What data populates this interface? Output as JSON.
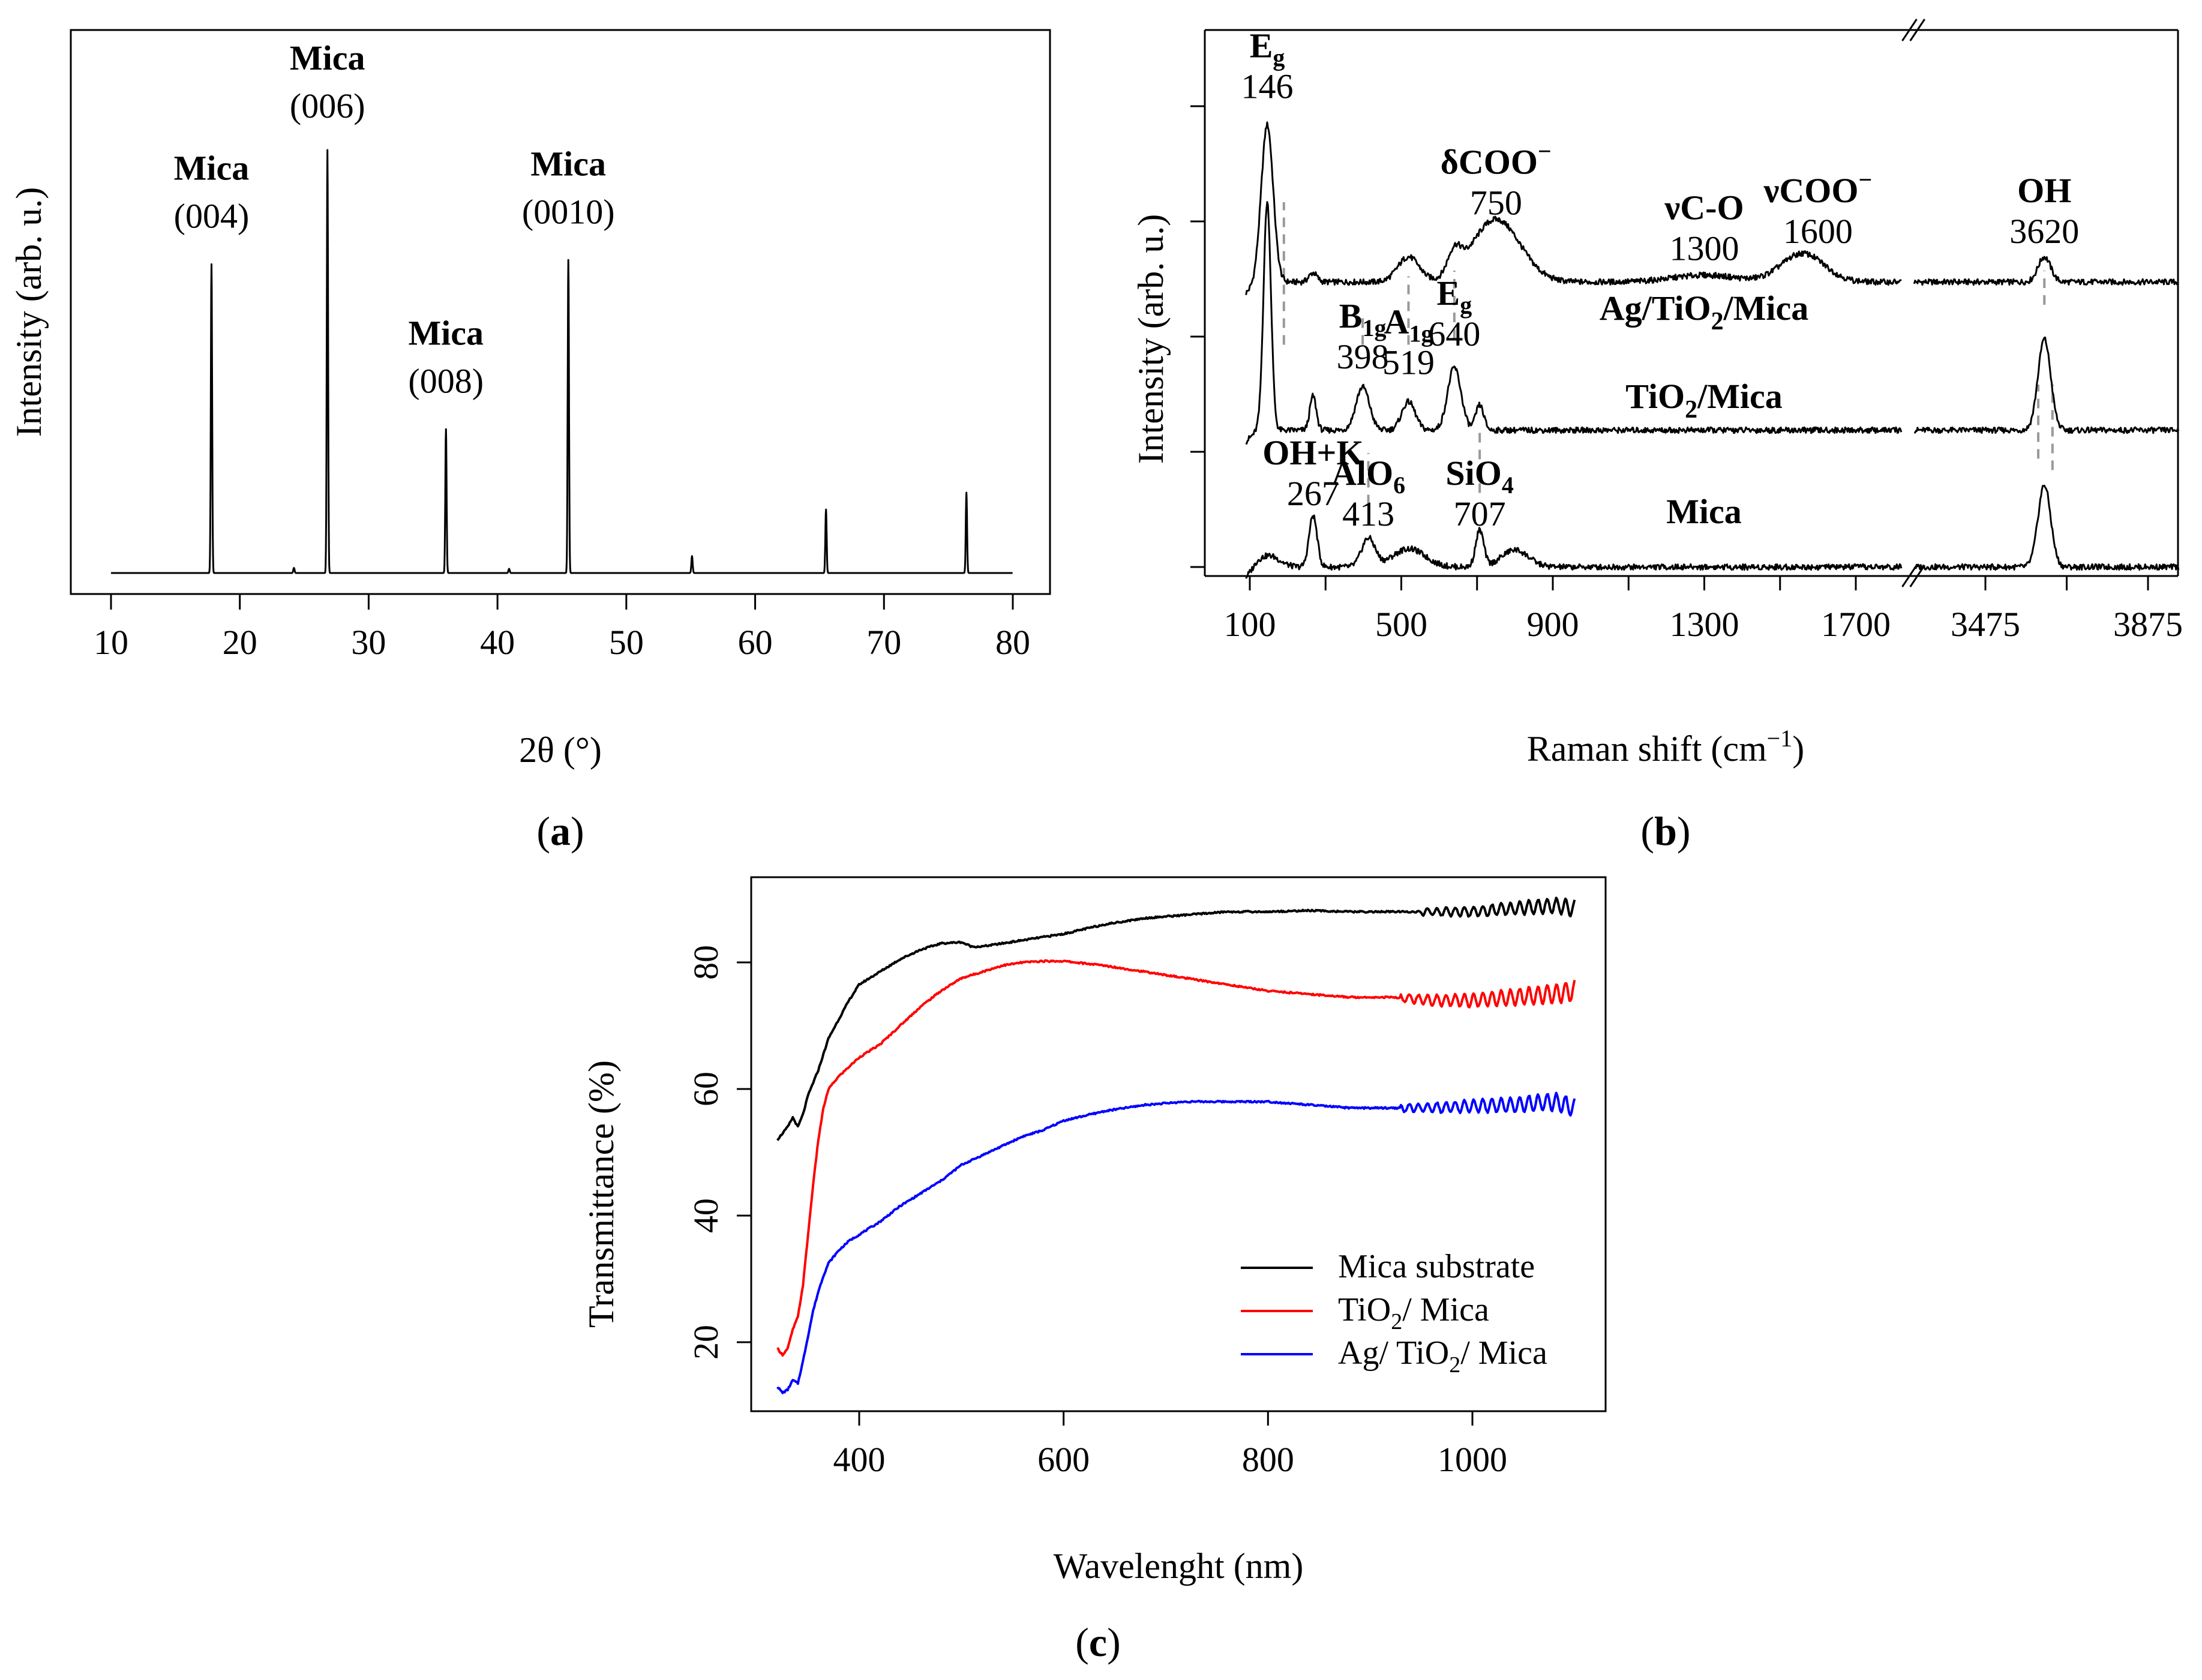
{
  "chart_data": [
    {
      "id": "a",
      "type": "line",
      "panel_label": "a",
      "xlabel": "2θ (°)",
      "ylabel": "Intensity (arb. u.)",
      "xlim": [
        10,
        80
      ],
      "ylim": [
        0,
        1.0
      ],
      "x_ticks": [
        10,
        20,
        30,
        40,
        50,
        60,
        70,
        80
      ],
      "series": [
        {
          "name": "Mica XRD",
          "color": "#000000",
          "baseline": 0.0,
          "peaks": [
            {
              "pos": 17.8,
              "height": 0.73
            },
            {
              "pos": 26.8,
              "height": 1.0
            },
            {
              "pos": 36.0,
              "height": 0.34
            },
            {
              "pos": 45.5,
              "height": 0.74
            },
            {
              "pos": 55.1,
              "height": 0.04
            },
            {
              "pos": 65.5,
              "height": 0.15
            },
            {
              "pos": 76.4,
              "height": 0.19
            },
            {
              "pos": 24.2,
              "height": 0.012
            },
            {
              "pos": 40.9,
              "height": 0.01
            }
          ]
        }
      ],
      "annotations": [
        {
          "name": "Mica",
          "hkl": "(004)",
          "x": 17.8,
          "label_y": 0.93
        },
        {
          "name": "Mica",
          "hkl": "(006)",
          "x": 26.8,
          "label_y": 1.19
        },
        {
          "name": "Mica",
          "hkl": "(008)",
          "x": 36.0,
          "label_y": 0.54
        },
        {
          "name": "Mica",
          "hkl": "(0010)",
          "x": 45.5,
          "label_y": 0.94
        }
      ]
    },
    {
      "id": "b",
      "type": "line",
      "panel_label": "b",
      "xlabel": "Raman shift (cm",
      "xlabel_sup": "−1",
      "xlabel_end": ")",
      "ylabel": "Intensity (arb. u.)",
      "x_segments": [
        [
          50,
          1850
        ],
        [
          3300,
          3950
        ]
      ],
      "x_ticks_labeled": [
        100,
        500,
        900,
        1300,
        1700,
        3475,
        3875
      ],
      "ylim": [
        0,
        5
      ],
      "series": [
        {
          "name": "Ag/TiO2/Mica",
          "label_main": "Ag/TiO",
          "label_sub": "2",
          "label_end": "/Mica",
          "offset": 2.5,
          "peaks": [
            {
              "pos": 146,
              "height": 1.38,
              "width": 22
            },
            {
              "pos": 267,
              "height": 0.08,
              "width": 15
            },
            {
              "pos": 519,
              "height": 0.22,
              "width": 40
            },
            {
              "pos": 640,
              "height": 0.2,
              "width": 25
            },
            {
              "pos": 750,
              "height": 0.55,
              "width": 90
            },
            {
              "pos": 1300,
              "height": 0.06,
              "width": 120
            },
            {
              "pos": 1560,
              "height": 0.25,
              "width": 80
            },
            {
              "pos": 3620,
              "height": 0.22,
              "width": 22
            }
          ]
        },
        {
          "name": "TiO2/Mica",
          "label_main": "TiO",
          "label_sub": "2",
          "label_end": "/Mica",
          "offset": 1.2,
          "peaks": [
            {
              "pos": 146,
              "height": 2.0,
              "width": 14
            },
            {
              "pos": 267,
              "height": 0.3,
              "width": 12
            },
            {
              "pos": 398,
              "height": 0.38,
              "width": 25
            },
            {
              "pos": 519,
              "height": 0.25,
              "width": 25
            },
            {
              "pos": 640,
              "height": 0.55,
              "width": 25
            },
            {
              "pos": 707,
              "height": 0.22,
              "width": 15
            },
            {
              "pos": 3620,
              "height": 0.8,
              "width": 22
            }
          ]
        },
        {
          "name": "Mica",
          "label_main": "Mica",
          "label_sub": "",
          "label_end": "",
          "offset": 0.0,
          "peaks": [
            {
              "pos": 150,
              "height": 0.1,
              "width": 40
            },
            {
              "pos": 267,
              "height": 0.45,
              "width": 15
            },
            {
              "pos": 413,
              "height": 0.25,
              "width": 25
            },
            {
              "pos": 520,
              "height": 0.16,
              "width": 60
            },
            {
              "pos": 707,
              "height": 0.32,
              "width": 15
            },
            {
              "pos": 800,
              "height": 0.15,
              "width": 50
            },
            {
              "pos": 3620,
              "height": 0.72,
              "width": 22
            }
          ]
        }
      ],
      "dashed_markers": [
        {
          "x": 190,
          "y0": 1.95,
          "y1": 3.2
        },
        {
          "x": 398,
          "y0": 1.95,
          "y1": 2.2
        },
        {
          "x": 519,
          "y0": 1.95,
          "y1": 2.55
        },
        {
          "x": 640,
          "y0": 2.0,
          "y1": 2.6
        },
        {
          "x": 413,
          "y0": 0.55,
          "y1": 1.0
        },
        {
          "x": 707,
          "y0": 0.65,
          "y1": 1.2
        },
        {
          "x": 3605,
          "y0": 0.95,
          "y1": 1.6
        },
        {
          "x": 3640,
          "y0": 0.85,
          "y1": 1.6
        },
        {
          "x": 3620,
          "y0": 2.3,
          "y1": 2.6
        }
      ],
      "annotations": [
        {
          "x": 146,
          "y": 4.47,
          "lines": [
            {
              "t": "E",
              "sub": "g",
              "bold": true
            },
            {
              "t": "146"
            }
          ]
        },
        {
          "x": 750,
          "y": 3.45,
          "lines": [
            {
              "t": "δCOO",
              "sup": "−",
              "bold": true
            },
            {
              "t": "750"
            }
          ]
        },
        {
          "x": 1300,
          "y": 3.05,
          "lines": [
            {
              "t": "νC-O",
              "bold": true
            },
            {
              "t": "1300"
            }
          ]
        },
        {
          "x": 1600,
          "y": 3.2,
          "lines": [
            {
              "t": "νCOO",
              "sup": "−",
              "bold": true
            },
            {
              "t": "1600"
            }
          ]
        },
        {
          "x": 3620,
          "y": 3.2,
          "lines": [
            {
              "t": "OH",
              "bold": true
            },
            {
              "t": "3620"
            }
          ]
        },
        {
          "x": 398,
          "y": 2.1,
          "lines": [
            {
              "t": "B",
              "sub": "1g",
              "bold": true
            },
            {
              "t": "398"
            }
          ]
        },
        {
          "x": 519,
          "y": 2.05,
          "lines": [
            {
              "t": "A",
              "sub": "1g",
              "bold": true
            },
            {
              "t": "519"
            }
          ]
        },
        {
          "x": 640,
          "y": 2.3,
          "lines": [
            {
              "t": "E",
              "sub": "g",
              "bold": true
            },
            {
              "t": "640"
            }
          ]
        },
        {
          "x": 267,
          "y": 0.9,
          "lines": [
            {
              "t": "OH+K",
              "bold": true
            },
            {
              "t": "267"
            }
          ]
        },
        {
          "x": 413,
          "y": 0.72,
          "lines": [
            {
              "t": "AlO",
              "sub": "6",
              "bold": true
            },
            {
              "t": "413"
            }
          ]
        },
        {
          "x": 707,
          "y": 0.72,
          "lines": [
            {
              "t": "SiO",
              "sub": "4",
              "bold": true
            },
            {
              "t": "707"
            }
          ]
        }
      ]
    },
    {
      "id": "c",
      "type": "line",
      "panel_label": "c",
      "xlabel": "Wavelenght (nm)",
      "ylabel": "Transmittance (%)",
      "xlim": [
        300,
        1110
      ],
      "ylim": [
        9,
        92
      ],
      "x_ticks": [
        400,
        600,
        800,
        1000
      ],
      "y_ticks": [
        20,
        40,
        60,
        80
      ],
      "legend_position": "bottom-right",
      "series": [
        {
          "name": "Mica substrate",
          "legend_main": "Mica substrate",
          "legend_sub": "",
          "legend_end": "",
          "color": "#000000",
          "x": [
            320,
            330,
            335,
            340,
            345,
            350,
            360,
            370,
            380,
            390,
            400,
            410,
            420,
            440,
            460,
            480,
            500,
            510,
            520,
            540,
            560,
            580,
            600,
            640,
            680,
            720,
            760,
            800,
            840,
            880,
            920,
            960,
            1000,
            1040,
            1080,
            1100
          ],
          "y": [
            52,
            54,
            55.5,
            54,
            56,
            59,
            63,
            68,
            71,
            74,
            76.5,
            77.5,
            78.5,
            80.5,
            82,
            83,
            83.2,
            82.5,
            82.5,
            83,
            83.5,
            84,
            84.5,
            86,
            87,
            87.5,
            88,
            88,
            88.2,
            88,
            88,
            88,
            88,
            88.5,
            89,
            88.5
          ],
          "ripple": [
            [
              950,
              1100,
              1.3
            ]
          ]
        },
        {
          "name": "TiO2/ Mica",
          "legend_main": "TiO",
          "legend_sub": "2",
          "legend_end": "/ Mica",
          "color": "#ff0000",
          "x": [
            320,
            325,
            330,
            335,
            340,
            345,
            350,
            355,
            360,
            365,
            370,
            375,
            380,
            390,
            400,
            420,
            440,
            460,
            480,
            500,
            520,
            540,
            560,
            580,
            600,
            640,
            680,
            720,
            760,
            800,
            840,
            880,
            920,
            960,
            1000,
            1040,
            1080,
            1100
          ],
          "y": [
            19,
            18,
            19,
            22,
            24,
            29,
            37,
            45,
            52,
            57,
            60,
            61,
            62,
            63.5,
            65,
            67,
            70,
            73,
            75.5,
            77.5,
            78.5,
            79.5,
            80,
            80.2,
            80.2,
            79.5,
            78.5,
            77.5,
            76.5,
            75.5,
            75,
            74.5,
            74.5,
            74,
            74,
            74.5,
            75,
            75.5
          ],
          "ripple": [
            [
              930,
              1100,
              1.6
            ]
          ]
        },
        {
          "name": "Ag/ TiO2/ Mica",
          "legend_main": "Ag/ TiO",
          "legend_sub": "2",
          "legend_end": "/ Mica",
          "color": "#0000ff",
          "x": [
            320,
            325,
            330,
            335,
            340,
            345,
            350,
            355,
            360,
            365,
            370,
            380,
            390,
            400,
            420,
            440,
            460,
            480,
            500,
            520,
            540,
            560,
            580,
            600,
            640,
            680,
            720,
            760,
            800,
            840,
            880,
            920,
            960,
            1000,
            1040,
            1080,
            1100
          ],
          "y": [
            13,
            12,
            12.5,
            14,
            13.5,
            17,
            21,
            25,
            28,
            30.5,
            32.5,
            34.5,
            36,
            37,
            39,
            41.5,
            43.5,
            45.5,
            48,
            49.5,
            51,
            52.5,
            53.5,
            55,
            56.5,
            57.5,
            58,
            58,
            58,
            57.5,
            57,
            57,
            57,
            57.3,
            57.5,
            58,
            57
          ],
          "ripple": [
            [
              930,
              1100,
              1.5
            ]
          ]
        }
      ]
    }
  ]
}
